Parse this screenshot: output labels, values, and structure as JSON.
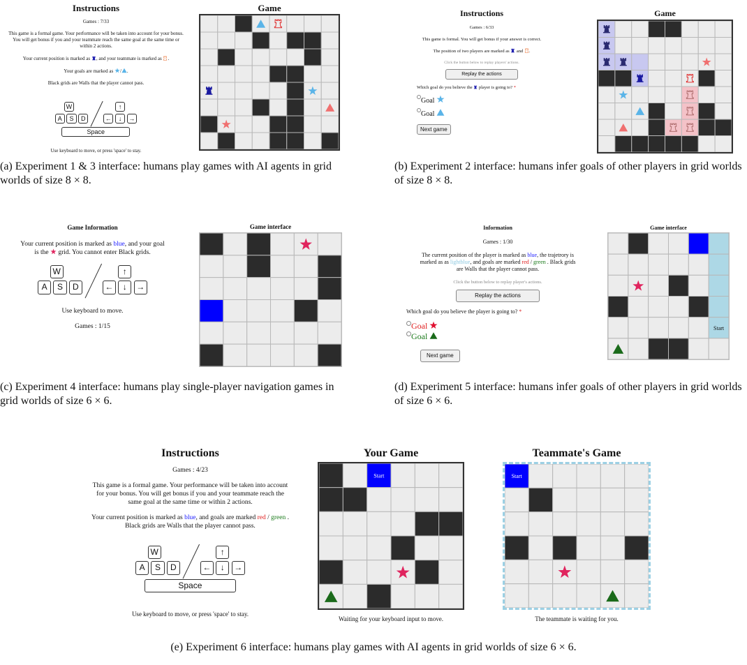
{
  "panels": {
    "a": {
      "title": "Instructions",
      "games": "Games : 7/33",
      "para": "This game is a formal game. Your performance will be taken into account for your bonus. You will get bonus if you and your teammate reach the same goal at the same time or within 2 actions.",
      "pos": [
        "Your current position is marked as",
        ", and your teammate is marked as",
        "."
      ],
      "goals": [
        "Your goals are marked as",
        "/",
        "."
      ],
      "walls": "Black grids are Walls that the player cannot pass.",
      "hint": "Use keyboard to move, or press 'space' to stay.",
      "game_title": "Game"
    },
    "b": {
      "title": "Instructions",
      "games": "Games : 6/33",
      "para": "This game is formal. You will get bonus if your answer is correct.",
      "pos": [
        "The position of two players are marked as",
        "and",
        "."
      ],
      "click": "Click the button below to replay players' actions.",
      "replay": "Replay the actions",
      "question": [
        "Which goal do you believe the",
        "player is going to?"
      ],
      "required": "*",
      "goal_options": [
        "Goal",
        "Goal"
      ],
      "next": "Next game",
      "game_title": "Game"
    },
    "c": {
      "title": "Game Information",
      "para": [
        "Your current position is marked as",
        "blue",
        ", and your goal is the",
        "grid. You cannot enter Black grids."
      ],
      "hint": "Use keyboard to move.",
      "games": "Games : 1/15",
      "game_title": "Game interface"
    },
    "d": {
      "title": "Information",
      "games": "Games : 1/30",
      "para": [
        "The current position of the player is marked as",
        "blue",
        ", the trajetrory is marked as as",
        "lightblue",
        ", and goals are marked",
        "red",
        "/",
        "green",
        ". Black grids are Walls that the player cannot pass."
      ],
      "click": "Click the button below to replay player's actions.",
      "replay": "Replay the actions",
      "question": "Which goal do you believe the player is going to?",
      "required": "*",
      "goal_options": [
        "Goal",
        "Goal"
      ],
      "next": "Next game",
      "game_title": "Game interface",
      "start": "Start"
    },
    "e": {
      "title": "Instructions",
      "games": "Games : 4/23",
      "para": "This game is a formal game. Your performance will be taken into account for your bonus. You will get bonus if you and your teammate reach the same goal at the same time or within 2 actions.",
      "pos": [
        "Your current position is marked as",
        "blue",
        ", and goals are marked",
        "red",
        "/",
        "green",
        ". Black grids are Walls that the player cannot pass."
      ],
      "hint": "Use keyboard to move, or press 'space' to stay.",
      "your_title": "Your Game",
      "team_title": "Teammate's Game",
      "your_status": "Waiting for your keyboard input to move.",
      "team_status": "The teammate is waiting for you.",
      "start": "Start"
    }
  },
  "keyboard": {
    "keys": [
      "W",
      "A",
      "S",
      "D"
    ],
    "arrows": [
      "↑",
      "←",
      "↓",
      "→"
    ],
    "space": "Space"
  },
  "captions": {
    "a": "(a) Experiment 1 & 3 interface: humans play games with AI agents in grid worlds of size 8 × 8.",
    "b": "(b) Experiment 2 interface: humans infer goals of other players in grid worlds of size 8 × 8.",
    "c": "(c) Experiment 4 interface: humans play single-player navigation games in grid worlds of size 6 × 6.",
    "d": "(d) Experiment 5 interface: humans infer goals of other players in grid worlds of size 6 × 6.",
    "e": "(e) Experiment 6 interface: humans play games with AI agents in grid worlds of size 6 × 6."
  }
}
